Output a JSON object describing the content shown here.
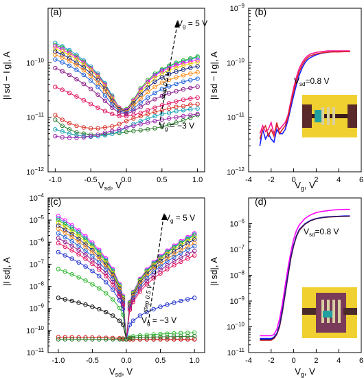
{
  "figure": {
    "panel_labels": [
      "(a)",
      "(b)",
      "(c)",
      "(d)"
    ],
    "annotations": {
      "vg_top": "V",
      "vg_top_sub": "g",
      "vg_top_val": " = 5 V",
      "vg_bottom": "V",
      "vg_bottom_sub": "g",
      "vg_bottom_val": " = −3 V",
      "step": "step 0.5 V",
      "vsd_label": "V",
      "vsd_sub": "sd",
      "vsd_val": "=0.8 V"
    },
    "axis_text": {
      "a_ylabel": "|I sd − I g|, A",
      "a_xlabel": "V",
      "a_xlabel_sub": "sd",
      "a_xlabel_unit": ", V",
      "b_xlabel": "V",
      "b_xlabel_sub": "g",
      "b_xlabel_unit": ", V",
      "c_ylabel": "|I sd|, A",
      "c_xlabel": "V",
      "c_xlabel_sub": "sd",
      "c_xlabel_unit": ", V",
      "d_xlabel": "V",
      "d_xlabel_sub": "g",
      "d_xlabel_unit": ", V"
    }
  },
  "chart_data": [
    {
      "panel": "(a)",
      "type": "line",
      "xlabel": "Vsd, V",
      "ylabel": "|Isd − Ig|, A",
      "xlim": [
        -1.1,
        1.1
      ],
      "ylim": [
        1e-12,
        1e-09
      ],
      "yscale": "log",
      "xticks": [
        "-1.0",
        "-0.5",
        "0.0",
        "0.5",
        "1.0"
      ],
      "yticks": [
        "10-12",
        "10-11",
        "10-10"
      ],
      "markers": "open-circle",
      "x": [
        -1.0,
        -0.9,
        -0.8,
        -0.7,
        -0.6,
        -0.5,
        -0.4,
        -0.3,
        -0.2,
        -0.1,
        0.0,
        0.1,
        0.2,
        0.3,
        0.4,
        0.5,
        0.6,
        0.7,
        0.8,
        0.9,
        1.0
      ],
      "series": [
        {
          "color": "#1f9bd8",
          "values": [
            2.3e-10,
            2e-10,
            1.7e-10,
            1.4e-10,
            1.1e-10,
            8.5e-11,
            6.3e-11,
            4.2e-11,
            2.5e-11,
            1.5e-11,
            1.3e-11,
            2e-11,
            3.2e-11,
            4.5e-11,
            6e-11,
            7.3e-11,
            8.5e-11,
            9.6e-11,
            1.05e-10,
            1.15e-10,
            1.25e-10
          ]
        },
        {
          "color": "#2eb82e",
          "values": [
            2.1e-10,
            1.9e-10,
            1.6e-10,
            1.3e-10,
            1.05e-10,
            8e-11,
            6e-11,
            4e-11,
            2.4e-11,
            1.5e-11,
            1.4e-11,
            2.1e-11,
            3.4e-11,
            4.8e-11,
            6.3e-11,
            7.6e-11,
            8.8e-11,
            1e-10,
            1.1e-10,
            1.2e-10,
            1.3e-10
          ]
        },
        {
          "color": "#ff00ff",
          "values": [
            2e-10,
            1.75e-10,
            1.5e-10,
            1.25e-10,
            1e-10,
            7.8e-11,
            5.8e-11,
            3.9e-11,
            2.3e-11,
            1.5e-11,
            1.35e-11,
            2e-11,
            3.2e-11,
            4.5e-11,
            5.8e-11,
            7e-11,
            8e-11,
            9e-11,
            9.8e-11,
            1.05e-10,
            1.12e-10
          ]
        },
        {
          "color": "#e8d800",
          "values": [
            1.8e-10,
            1.6e-10,
            1.4e-10,
            1.15e-10,
            9.3e-11,
            7.3e-11,
            5.5e-11,
            3.7e-11,
            2.2e-11,
            1.45e-11,
            1.3e-11,
            1.9e-11,
            2.9e-11,
            4e-11,
            5.2e-11,
            6.3e-11,
            7.3e-11,
            8.1e-11,
            8.9e-11,
            9.6e-11,
            1.02e-10
          ]
        },
        {
          "color": "#1a237e",
          "values": [
            1.6e-10,
            1.42e-10,
            1.22e-10,
            1e-10,
            8.2e-11,
            6.4e-11,
            4.8e-11,
            3.3e-11,
            2e-11,
            1.4e-11,
            1.3e-11,
            1.8e-11,
            2.6e-11,
            3.5e-11,
            4.5e-11,
            5.4e-11,
            6.2e-11,
            6.9e-11,
            7.5e-11,
            8.1e-11,
            8.6e-11
          ]
        },
        {
          "color": "#ff8c1a",
          "values": [
            1.4e-10,
            1.25e-10,
            1.08e-10,
            9e-11,
            7.3e-11,
            5.7e-11,
            4.3e-11,
            3e-11,
            1.9e-11,
            1.35e-11,
            1.25e-11,
            1.6e-11,
            2.2e-11,
            2.9e-11,
            3.6e-11,
            4.3e-11,
            4.9e-11,
            5.4e-11,
            5.9e-11,
            6.3e-11,
            6.7e-11
          ]
        },
        {
          "color": "#1e5fd8",
          "values": [
            1.15e-10,
            1.02e-10,
            8.8e-11,
            7.4e-11,
            6e-11,
            4.7e-11,
            3.6e-11,
            2.5e-11,
            1.7e-11,
            1.3e-11,
            1.2e-11,
            1.45e-11,
            1.85e-11,
            2.3e-11,
            2.8e-11,
            3.3e-11,
            3.7e-11,
            4.1e-11,
            4.5e-11,
            4.8e-11,
            5.1e-11
          ]
        },
        {
          "color": "#8b1a8b",
          "values": [
            8e-11,
            7e-11,
            6e-11,
            5e-11,
            4.1e-11,
            3.3e-11,
            2.6e-11,
            2e-11,
            1.5e-11,
            1.2e-11,
            1.15e-11,
            1.3e-11,
            1.55e-11,
            1.85e-11,
            2.15e-11,
            2.45e-11,
            2.75e-11,
            3e-11,
            3.25e-11,
            3.45e-11,
            3.65e-11
          ]
        },
        {
          "color": "#e0115f",
          "values": [
            3.6e-11,
            3.2e-11,
            2.8e-11,
            2.4e-11,
            2.05e-11,
            1.75e-11,
            1.5e-11,
            1.3e-11,
            1.15e-11,
            1.05e-11,
            1.05e-11,
            1.1e-11,
            1.2e-11,
            1.35e-11,
            1.5e-11,
            1.65e-11,
            1.8e-11,
            1.95e-11,
            2.1e-11,
            2.2e-11,
            2.3e-11
          ]
        },
        {
          "color": "#d73027",
          "values": [
            1.1e-11,
            9e-12,
            7.8e-12,
            7e-12,
            6.5e-12,
            6.3e-12,
            6.3e-12,
            6.5e-12,
            6.8e-12,
            7.5e-12,
            8.5e-12,
            9.5e-12,
            1.05e-11,
            1.15e-11,
            1.25e-11,
            1.35e-11,
            1.45e-11,
            1.55e-11,
            1.6e-11,
            1.7e-11,
            1.75e-11
          ]
        },
        {
          "color": "#2e7d32",
          "values": [
            9e-12,
            7e-12,
            6e-12,
            5.3e-12,
            5e-12,
            4.8e-12,
            4.8e-12,
            4.9e-12,
            5e-12,
            5.2e-12,
            5.4e-12,
            5.6e-12,
            5.8e-12,
            6e-12,
            6.3e-12,
            6.7e-12,
            7.3e-12,
            8e-12,
            8.8e-12,
            9.8e-12,
            1.1e-11
          ]
        },
        {
          "color": "#17a2b8",
          "values": [
            6e-12,
            5.5e-12,
            5e-12,
            4.7e-12,
            4.5e-12,
            4.4e-12,
            4.5e-12,
            4.7e-12,
            5e-12,
            5.5e-12,
            6.5e-12,
            7.5e-12,
            8.5e-12,
            9.5e-12,
            1.05e-11,
            1.15e-11,
            1.2e-11,
            1.3e-11,
            1.35e-11,
            1.4e-11,
            1.45e-11
          ]
        },
        {
          "color": "#9c27b0",
          "values": [
            4.5e-12,
            4.3e-12,
            4.2e-12,
            4.2e-12,
            4.3e-12,
            4.5e-12,
            4.8e-12,
            5.2e-12,
            5.6e-12,
            6e-12,
            6.5e-12,
            7e-12,
            7.5e-12,
            8e-12,
            8.5e-12,
            9e-12,
            9.5e-12,
            1e-11,
            1.05e-11,
            1.1e-11,
            1.15e-11
          ]
        }
      ]
    },
    {
      "panel": "(b)",
      "type": "line",
      "xlabel": "Vg, V",
      "ylabel": "|Isd − Ig|, A",
      "xlim": [
        -4,
        6
      ],
      "ylim": [
        1e-12,
        1e-09
      ],
      "yscale": "log",
      "xticks": [
        "-4",
        "-2",
        "0",
        "2",
        "4",
        "6"
      ],
      "yticks": [
        "10-12",
        "10-11",
        "10-10",
        "10-9"
      ],
      "annotation": "Vsd=0.8 V",
      "x": [
        -3.0,
        -2.75,
        -2.5,
        -2.25,
        -2.0,
        -1.75,
        -1.5,
        -1.25,
        -1.0,
        -0.75,
        -0.5,
        -0.25,
        0.0,
        0.25,
        0.5,
        0.75,
        1.0,
        1.25,
        1.5,
        2.0,
        2.5,
        3.0,
        3.5,
        4.0,
        4.5,
        5.0
      ],
      "series": [
        {
          "color": "#1a1aff",
          "values": [
            3e-12,
            6e-12,
            4e-12,
            5e-12,
            4e-12,
            3.5e-12,
            6e-12,
            5e-12,
            5e-12,
            6e-12,
            9e-12,
            1.5e-11,
            2.5e-11,
            4e-11,
            6e-11,
            8e-11,
            1e-10,
            1.15e-10,
            1.25e-10,
            1.4e-10,
            1.5e-10,
            1.55e-10,
            1.6e-10,
            1.6e-10,
            1.6e-10,
            1.6e-10
          ]
        },
        {
          "color": "#ff1493",
          "values": [
            5e-12,
            7e-12,
            5.5e-12,
            6e-12,
            8e-12,
            5e-12,
            7e-12,
            6e-12,
            7e-12,
            8e-12,
            1.1e-11,
            2e-11,
            3.5e-11,
            5.5e-11,
            8e-11,
            1e-10,
            1.2e-10,
            1.35e-10,
            1.45e-10,
            1.55e-10,
            1.6e-10,
            1.65e-10,
            1.65e-10,
            1.65e-10,
            1.65e-10,
            1.65e-10
          ]
        },
        {
          "color": "#d62828",
          "values": [
            4e-12,
            6e-12,
            7e-12,
            4.5e-12,
            6e-12,
            4.5e-12,
            8e-12,
            5e-12,
            6e-12,
            7e-12,
            1e-11,
            1.8e-11,
            3e-11,
            4.8e-11,
            7e-11,
            9e-11,
            1.1e-10,
            1.25e-10,
            1.35e-10,
            1.45e-10,
            1.52e-10,
            1.56e-10,
            1.58e-10,
            1.58e-10,
            1.6e-10,
            1.6e-10
          ]
        }
      ]
    },
    {
      "panel": "(c)",
      "type": "line",
      "xlabel": "Vsd, V",
      "ylabel": "|Isd|, A",
      "xlim": [
        -1.15,
        1.15
      ],
      "ylim": [
        1e-11,
        0.0001
      ],
      "yscale": "log",
      "xticks": [
        "-1.0",
        "-0.5",
        "0.0",
        "0.5",
        "1.0"
      ],
      "yticks": [
        "10-11",
        "10-10",
        "10-9",
        "10-8",
        "10-7",
        "10-6",
        "10-5",
        "10-4"
      ],
      "markers": "open-circle",
      "series": [
        {
          "color": "#ff00ff",
          "level_neg1": 1.5e-05,
          "level_pos1": 2.5e-06
        },
        {
          "color": "#1f9bd8",
          "level_neg1": 1.2e-05,
          "level_pos1": 2.2e-06
        },
        {
          "color": "#2eb82e",
          "level_neg1": 1e-05,
          "level_pos1": 2e-06
        },
        {
          "color": "#e8d800",
          "level_neg1": 7.5e-06,
          "level_pos1": 1.6e-06
        },
        {
          "color": "#1a237e",
          "level_neg1": 5.5e-06,
          "level_pos1": 1.3e-06
        },
        {
          "color": "#ff8c1a",
          "level_neg1": 4e-06,
          "level_pos1": 9e-07
        },
        {
          "color": "#1e5fd8",
          "level_neg1": 2.5e-06,
          "level_pos1": 6.5e-07
        },
        {
          "color": "#8b1a8b",
          "level_neg1": 1.5e-06,
          "level_pos1": 4e-07
        },
        {
          "color": "#e0115f",
          "level_neg1": 9e-07,
          "level_pos1": 2.5e-07
        },
        {
          "color": "#2233cc",
          "level_neg1": 3.5e-07,
          "level_pos1": 3e-09
        },
        {
          "color": "#33bb33",
          "level_neg1": 6e-08,
          "level_pos1": 8e-11
        },
        {
          "color": "#111111",
          "level_neg1": 3e-09,
          "level_pos1": 3.5e-11
        },
        {
          "color": "#e02020",
          "level_neg1": 5e-11,
          "level_pos1": 4e-11
        },
        {
          "color": "#2a7a2a",
          "level_neg1": 4e-11,
          "level_pos1": 5.5e-11
        }
      ]
    },
    {
      "panel": "(d)",
      "type": "line",
      "xlabel": "Vg, V",
      "ylabel": "",
      "xlim": [
        -4,
        6
      ],
      "ylim": [
        1e-11,
        1e-05
      ],
      "yscale": "log",
      "xticks": [
        "-4",
        "-2",
        "0",
        "2",
        "4",
        "6"
      ],
      "yticks": [
        "10-11",
        "10-10",
        "10-9",
        "10-8",
        "10-7",
        "10-6"
      ],
      "annotation": "Vsd=0.8 V",
      "x": [
        -3.0,
        -2.5,
        -2.0,
        -1.75,
        -1.5,
        -1.25,
        -1.0,
        -0.75,
        -0.5,
        -0.25,
        0.0,
        0.25,
        0.5,
        1.0,
        1.5,
        2.0,
        2.5,
        3.0,
        3.5,
        4.0,
        4.5,
        5.0
      ],
      "series": [
        {
          "color": "#ff00ff",
          "values": [
            4.5e-11,
            4.5e-11,
            4.5e-11,
            5e-11,
            8e-11,
            2e-10,
            8e-10,
            4e-09,
            2e-08,
            8e-08,
            2.5e-07,
            5.5e-07,
            9e-07,
            1.6e-06,
            2.2e-06,
            2.7e-06,
            3e-06,
            3.2e-06,
            3.4e-06,
            3.5e-06,
            3.6e-06,
            3.6e-06
          ]
        },
        {
          "color": "#1a1aff",
          "values": [
            3.5e-11,
            3.5e-11,
            3.5e-11,
            4e-11,
            5.5e-11,
            1.2e-10,
            4.5e-10,
            2.2e-09,
            1.1e-08,
            5e-08,
            1.5e-07,
            3.5e-07,
            6e-07,
            1e-06,
            1.35e-06,
            1.6e-06,
            1.75e-06,
            1.85e-06,
            1.9e-06,
            1.95e-06,
            2e-06,
            2e-06
          ]
        },
        {
          "color": "#d62828",
          "values": [
            3e-11,
            3e-11,
            3e-11,
            3.5e-11,
            5e-11,
            1e-10,
            3.8e-10,
            1.9e-09,
            9.5e-09,
            4.5e-08,
            1.4e-07,
            3.2e-07,
            5.5e-07,
            9.5e-07,
            1.3e-06,
            1.55e-06,
            1.7e-06,
            1.8e-06,
            1.85e-06,
            1.9e-06,
            1.92e-06,
            1.95e-06
          ]
        },
        {
          "color": "#2a1a6a",
          "values": [
            3.2e-11,
            3.2e-11,
            3.2e-11,
            3.8e-11,
            5.2e-11,
            1.1e-10,
            4e-10,
            2e-09,
            1e-08,
            4.8e-08,
            1.45e-07,
            3.3e-07,
            5.8e-07,
            9.8e-07,
            1.32e-06,
            1.58e-06,
            1.72e-06,
            1.82e-06,
            1.88e-06,
            1.92e-06,
            1.95e-06,
            1.98e-06
          ]
        }
      ]
    }
  ]
}
